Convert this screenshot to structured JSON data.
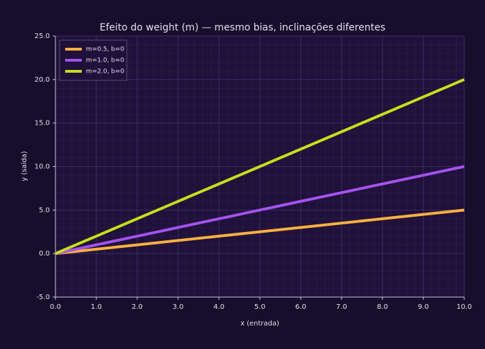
{
  "chart_data": {
    "type": "line",
    "title": "Efeito do weight (m) — mesmo bias, inclinações diferentes",
    "x_label": "x (entrada)",
    "y_label": "y (saída)",
    "x": [
      0,
      1,
      2,
      3,
      4,
      5,
      6,
      7,
      8,
      9,
      10
    ],
    "series": [
      {
        "name": "m=0.5, b=0",
        "color": "#fbb040",
        "values": [
          0,
          0.5,
          1,
          1.5,
          2,
          2.5,
          3,
          3.5,
          4,
          4.5,
          5
        ]
      },
      {
        "name": "m=1.0, b=0",
        "color": "#a552f0",
        "values": [
          0,
          1,
          2,
          3,
          4,
          5,
          6,
          7,
          8,
          9,
          10
        ]
      },
      {
        "name": "m=2.0, b=0",
        "color": "#c4e01c",
        "values": [
          0,
          2,
          4,
          6,
          8,
          10,
          12,
          14,
          16,
          18,
          20
        ]
      }
    ],
    "xlim": [
      0,
      10
    ],
    "xticks": [
      {
        "value": 0,
        "label": "0.0"
      },
      {
        "value": 1,
        "label": "1.0"
      },
      {
        "value": 2,
        "label": "2.0"
      },
      {
        "value": 3,
        "label": "3.0"
      },
      {
        "value": 4,
        "label": "4.0"
      },
      {
        "value": 5,
        "label": "5.0"
      },
      {
        "value": 6,
        "label": "6.0"
      },
      {
        "value": 7,
        "label": "7.0"
      },
      {
        "value": 8,
        "label": "8.0"
      },
      {
        "value": 9,
        "label": "9.0"
      },
      {
        "value": 10,
        "label": "10.0"
      }
    ],
    "ylim": [
      -5,
      25
    ],
    "yticks": [
      {
        "value": -5,
        "label": "-5.0"
      },
      {
        "value": 0,
        "label": "0.0"
      },
      {
        "value": 5,
        "label": "5.0"
      },
      {
        "value": 10,
        "label": "10.0"
      },
      {
        "value": 15,
        "label": "15.0"
      },
      {
        "value": 20,
        "label": "20.0"
      },
      {
        "value": 25,
        "label": "25.0"
      }
    ],
    "grid": true,
    "minor_grid": true,
    "legend": "top-left"
  }
}
